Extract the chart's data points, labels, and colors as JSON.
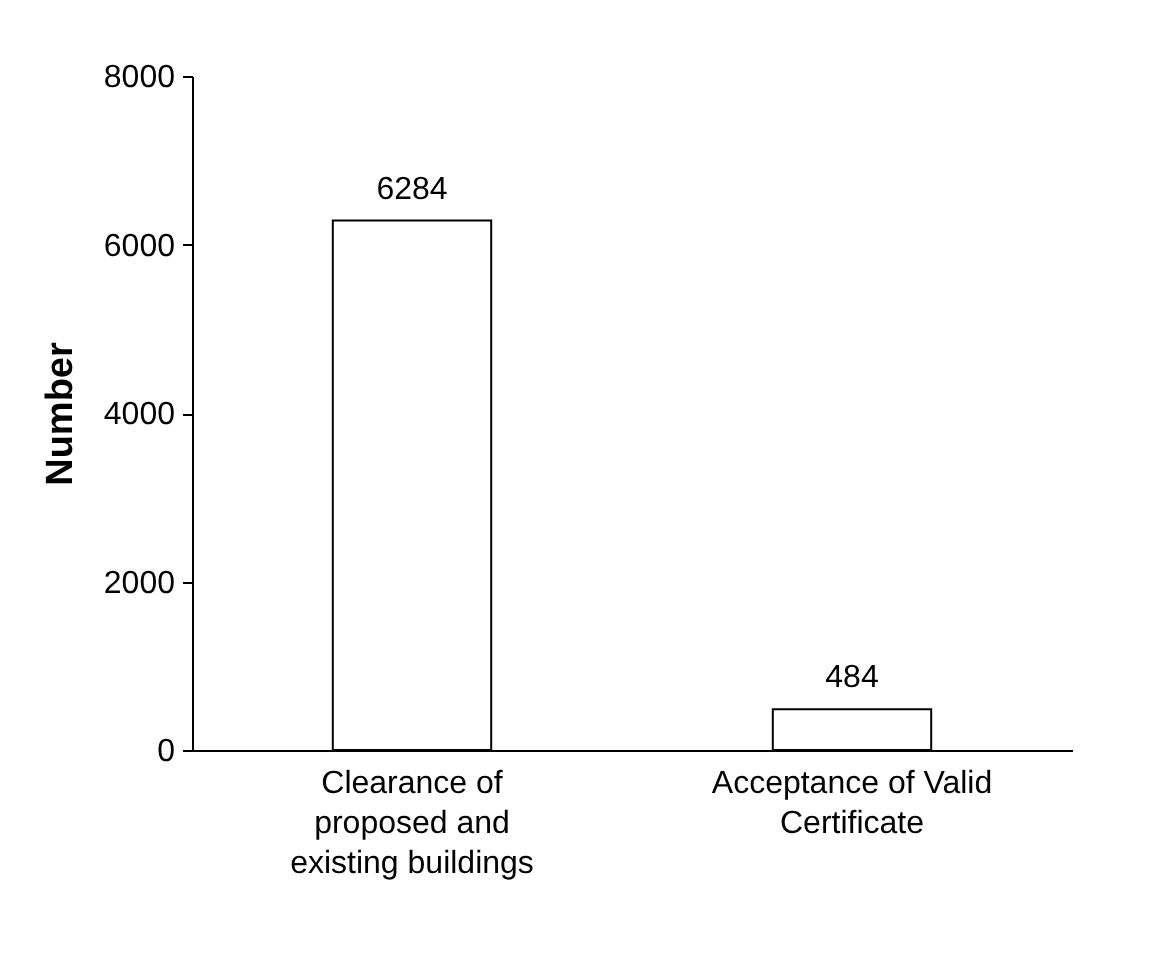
{
  "chart_data": {
    "type": "bar",
    "ylabel": "Number",
    "categories": [
      "Clearance of proposed and existing buildings",
      "Acceptance of Valid Certificate"
    ],
    "values": [
      6284,
      484
    ],
    "color": "#ffffff",
    "ylim": [
      0,
      8000
    ],
    "yticks": [
      0,
      2000,
      4000,
      6000,
      8000
    ],
    "grid": false,
    "data_labels": true
  }
}
